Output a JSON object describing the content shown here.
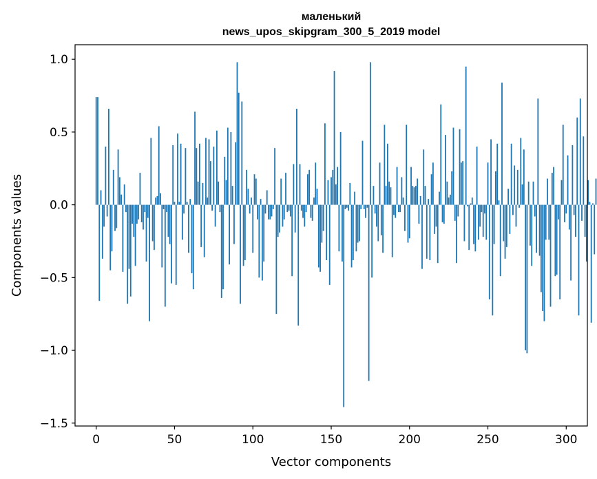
{
  "chart_data": {
    "type": "bar",
    "title": "маленький",
    "subtitle": "news_upos_skipgram_300_5_2019 model",
    "xlabel": "Vector components",
    "ylabel": "Components values",
    "xlim": [
      -13.5,
      313.5
    ],
    "ylim": [
      -1.52,
      1.1
    ],
    "xticks": [
      0,
      50,
      100,
      150,
      200,
      250,
      300
    ],
    "xtick_labels": [
      "0",
      "50",
      "100",
      "150",
      "200",
      "250",
      "300"
    ],
    "yticks": [
      1.0,
      0.5,
      0.0,
      -0.5,
      -1.0,
      -1.5
    ],
    "ytick_labels": [
      "1.0",
      "0.5",
      "0.0",
      "−0.5",
      "−1.0",
      "−1.5"
    ],
    "bar_color": "#1f77b4",
    "values": [
      0.74,
      0.74,
      -0.66,
      0.1,
      -0.37,
      -0.15,
      0.4,
      -0.08,
      0.66,
      -0.45,
      -0.32,
      0.24,
      -0.18,
      -0.16,
      0.38,
      0.19,
      0.07,
      -0.46,
      0.14,
      -0.05,
      -0.68,
      -0.44,
      -0.63,
      -0.13,
      -0.22,
      -0.42,
      -0.13,
      -0.1,
      0.22,
      -0.12,
      -0.17,
      -0.05,
      -0.39,
      -0.09,
      -0.8,
      0.46,
      -0.25,
      -0.31,
      0.05,
      0.06,
      0.54,
      0.08,
      -0.43,
      -0.03,
      -0.7,
      -0.05,
      -0.22,
      -0.27,
      -0.54,
      0.41,
      0.02,
      -0.55,
      0.49,
      0.02,
      0.42,
      -0.24,
      -0.06,
      0.39,
      0.02,
      -0.33,
      0.04,
      -0.47,
      -0.58,
      0.64,
      0.39,
      0.16,
      0.42,
      -0.29,
      0.15,
      -0.36,
      0.46,
      0.05,
      0.45,
      0.3,
      -0.04,
      0.4,
      -0.15,
      0.51,
      0.16,
      -0.05,
      -0.64,
      -0.58,
      0.33,
      0.17,
      0.53,
      -0.41,
      0.5,
      0.13,
      -0.27,
      0.43,
      0.98,
      0.77,
      -0.68,
      0.71,
      -0.42,
      -0.38,
      0.24,
      0.11,
      -0.06,
      0.05,
      -0.33,
      0.21,
      0.18,
      -0.1,
      -0.5,
      0.04,
      -0.52,
      -0.39,
      -0.06,
      0.1,
      -0.1,
      -0.1,
      -0.08,
      -0.03,
      0.39,
      -0.75,
      -0.22,
      -0.19,
      0.18,
      -0.15,
      -0.1,
      0.22,
      -0.05,
      -0.04,
      -0.08,
      -0.49,
      0.28,
      -0.19,
      0.66,
      -0.83,
      0.28,
      -0.04,
      -0.09,
      -0.15,
      -0.05,
      0.21,
      0.24,
      -0.09,
      -0.11,
      0.05,
      0.29,
      0.11,
      -0.43,
      -0.46,
      -0.26,
      -0.18,
      0.56,
      -0.38,
      0.17,
      -0.55,
      0.19,
      0.24,
      0.92,
      0.14,
      0.26,
      -0.32,
      0.5,
      -0.39,
      -1.39,
      -0.03,
      -0.02,
      -0.04,
      0.15,
      -0.43,
      -0.38,
      0.09,
      -0.32,
      -0.26,
      -0.25,
      -0.03,
      0.44,
      -0.03,
      -0.09,
      -0.02,
      -1.21,
      0.98,
      -0.5,
      0.13,
      -0.06,
      -0.15,
      -0.25,
      0.29,
      -0.21,
      -0.33,
      0.55,
      0.13,
      0.42,
      0.16,
      0.12,
      -0.36,
      -0.07,
      -0.09,
      0.26,
      -0.05,
      -0.05,
      0.19,
      0.05,
      -0.18,
      0.55,
      -0.26,
      -0.23,
      0.26,
      0.13,
      0.12,
      0.13,
      0.18,
      -0.13,
      0.06,
      -0.44,
      0.38,
      0.13,
      -0.37,
      0.04,
      -0.38,
      0.21,
      0.29,
      -0.2,
      -0.15,
      -0.4,
      0.09,
      0.69,
      -0.12,
      -0.13,
      0.48,
      0.16,
      0.05,
      0.07,
      0.23,
      0.53,
      -0.11,
      -0.4,
      -0.08,
      0.52,
      0.29,
      0.3,
      -0.25,
      0.95,
      -0.01,
      -0.31,
      0.01,
      0.05,
      -0.27,
      -0.32,
      0.4,
      -0.24,
      -0.15,
      -0.05,
      -0.22,
      -0.06,
      -0.24,
      0.29,
      -0.65,
      0.45,
      -0.76,
      -0.27,
      0.23,
      0.42,
      0.03,
      -0.49,
      0.84,
      -0.25,
      -0.37,
      -0.29,
      0.11,
      -0.2,
      0.42,
      -0.07,
      0.27,
      -0.15,
      0.24,
      -0.02,
      0.46,
      0.14,
      0.38,
      -1.0,
      -1.02,
      0.16,
      -0.28,
      -0.42,
      0.16,
      -0.08,
      -0.33,
      0.73,
      -0.35,
      -0.6,
      -0.73,
      -0.8,
      -0.24,
      0.18,
      -0.24,
      -0.7,
      0.22,
      0.26,
      -0.49,
      -0.48,
      -0.1,
      -0.65,
      0.17,
      0.55,
      -0.12,
      -0.06,
      0.34,
      -0.17,
      -0.52,
      0.41,
      -0.07,
      -0.22,
      0.6,
      -0.76,
      0.73,
      -0.11,
      0.47,
      -0.22,
      -0.39,
      0.17,
      0.02,
      -0.81,
      0.01,
      -0.34,
      0.18
    ]
  }
}
